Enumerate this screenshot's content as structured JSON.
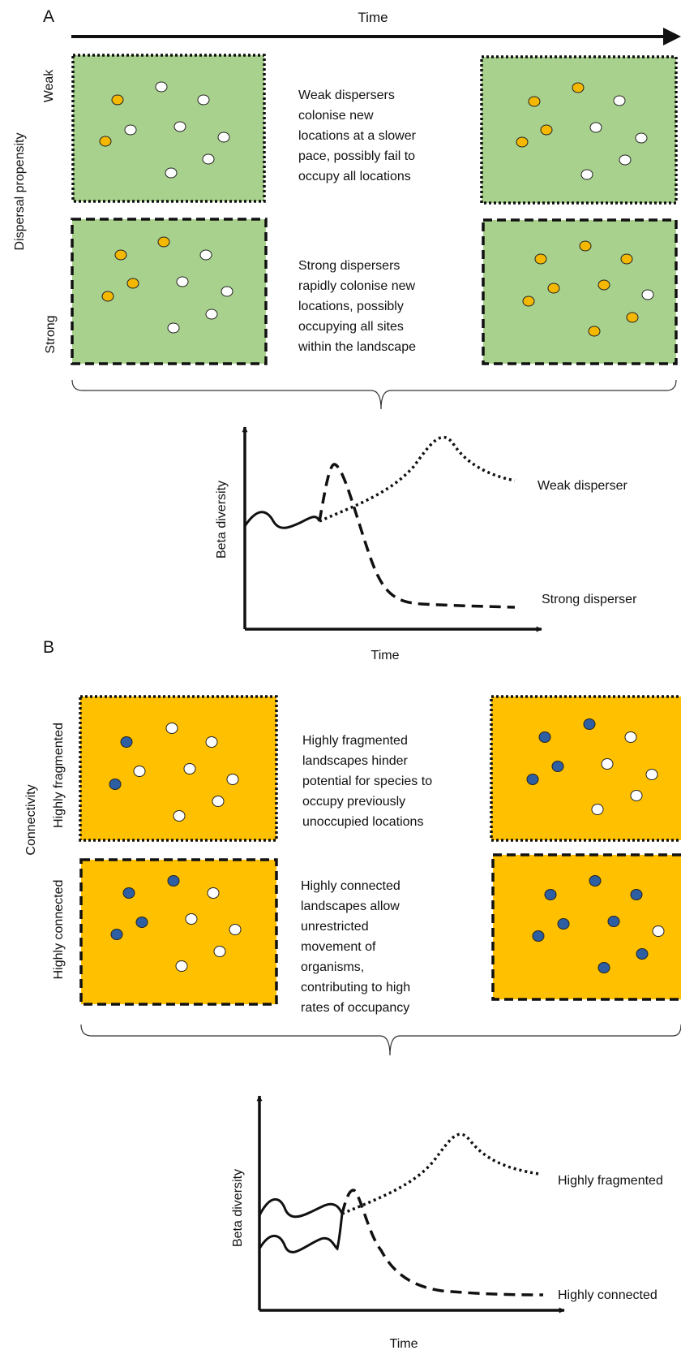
{
  "panel_a": {
    "letter": "A",
    "time_label": "Time",
    "axis_label": "Dispersal propensity",
    "rows": [
      {
        "label": "Weak",
        "description": [
          "Weak dispersers",
          "colonise new",
          "locations at a slower",
          "pace, possibly fail to",
          "occupy all locations"
        ]
      },
      {
        "label": "Strong",
        "description": [
          "Strong dispersers",
          "rapidly colonise new",
          "locations, possibly",
          "occupying all sites",
          "within the landscape"
        ]
      }
    ],
    "graph": {
      "ylabel": "Beta diversity",
      "xlabel": "Time",
      "series": [
        {
          "name": "Weak disperser",
          "style": "dotted"
        },
        {
          "name": "Strong disperser",
          "style": "dashed"
        }
      ]
    }
  },
  "panel_b": {
    "letter": "B",
    "axis_label": "Connectivity",
    "rows": [
      {
        "label": "Highly fragmented",
        "description": [
          "Highly fragmented",
          "landscapes hinder",
          "potential for species to",
          "occupy previously",
          "unoccupied locations"
        ]
      },
      {
        "label": "Highly connected",
        "description": [
          "Highly connected",
          "landscapes allow",
          "unrestricted",
          "movement of",
          "organisms,",
          "contributing to high",
          "rates of occupancy"
        ]
      }
    ],
    "graph": {
      "ylabel": "Beta diversity",
      "xlabel": "Time",
      "series": [
        {
          "name": "Highly fragmented",
          "style": "dotted"
        },
        {
          "name": "Highly connected",
          "style": "dashed"
        }
      ]
    }
  },
  "colors": {
    "landscape_green": "#a9d18e",
    "landscape_orange": "#ffc000",
    "occupied_orange": "#f5b800",
    "occupied_blue": "#2e5fa3",
    "unoccupied": "#ffffff",
    "outline": "#111111"
  },
  "landscapes": [
    {
      "name": "weak-start",
      "occupied": 3,
      "total": 10
    },
    {
      "name": "weak-end",
      "occupied": 4,
      "total": 10
    },
    {
      "name": "strong-start",
      "occupied": 5,
      "total": 10
    },
    {
      "name": "strong-end",
      "occupied": 9,
      "total": 10
    },
    {
      "name": "fragmented-start",
      "occupied": 2,
      "total": 10
    },
    {
      "name": "fragmented-end",
      "occupied": 4,
      "total": 10
    },
    {
      "name": "connected-start",
      "occupied": 4,
      "total": 10
    },
    {
      "name": "connected-end",
      "occupied": 8,
      "total": 10
    }
  ]
}
